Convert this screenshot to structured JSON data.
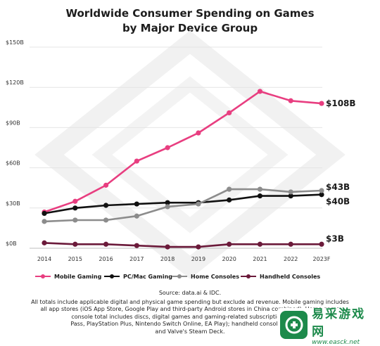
{
  "chart_data": {
    "type": "line",
    "title": "Worldwide Consumer Spending on Games",
    "subtitle": "by Major Device Group",
    "categories": [
      "2014",
      "2015",
      "2016",
      "2017",
      "2018",
      "2019",
      "2020",
      "2021",
      "2022",
      "2023F"
    ],
    "y_ticks": [
      "$0B",
      "$30B",
      "$60B",
      "$90B",
      "$120B",
      "$150B"
    ],
    "ylim": [
      0,
      150
    ],
    "grid": "horizontal",
    "legend_position": "bottom",
    "series": [
      {
        "name": "Mobile Gaming",
        "color": "#e83e80",
        "values": [
          27,
          35,
          47,
          65,
          75,
          86,
          101,
          117,
          110,
          108
        ],
        "end_label": "$108B"
      },
      {
        "name": "PC/Mac Gaming",
        "color": "#111111",
        "values": [
          26,
          30,
          32,
          33,
          34,
          34,
          36,
          39,
          39,
          40
        ],
        "end_label": "$40B"
      },
      {
        "name": "Home Consoles",
        "color": "#8c8c8c",
        "values": [
          20,
          21,
          21,
          24,
          31,
          33,
          44,
          44,
          42,
          43
        ],
        "end_label": "$43B"
      },
      {
        "name": "Handheld Consoles",
        "color": "#6b1a3a",
        "values": [
          4,
          3,
          3,
          2,
          1,
          1,
          3,
          3,
          3,
          3
        ],
        "end_label": "$3B"
      }
    ]
  },
  "footnote": {
    "source": "Source: data.ai & IDC.",
    "lines": [
      "All totals include applicable digital and physical game spending but exclude ad revenue. Mobile gaming includes",
      "all app stores (iOS App Store, Google Play and third-party Android stores in China combined). Home game",
      "console total includes discs, digital games and gaming-related subscription services",
      "Pass, PlayStation Plus, Nintendo Switch Online, EA Play); handheld consoles are typif",
      "and Valve's Steam Deck."
    ]
  },
  "watermark": {
    "name": "易采游戏网",
    "url": "www.easck.net",
    "icon": "easck-logo-icon",
    "color": "#1d8a4b"
  }
}
